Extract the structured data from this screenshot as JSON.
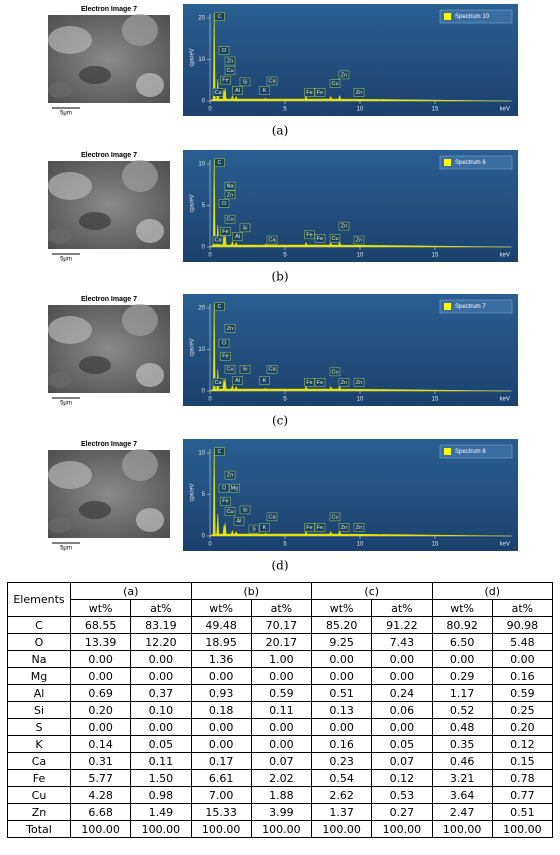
{
  "figure": {
    "panels": [
      {
        "image_title": "Electron Image 7",
        "scale_bar": "5μm",
        "legend": "Spectrum 10",
        "y_label": "cps/eV",
        "x_label": "keV",
        "yticks": [
          0,
          10,
          20
        ],
        "xticks": [
          0,
          5,
          10,
          15
        ],
        "peak_labels": [
          "C",
          "O",
          "Zn",
          "Cu",
          "Fe",
          "Ca",
          "Al",
          "Si",
          "K",
          "Ca",
          "Fe",
          "Fe",
          "Cu",
          "Zn",
          "Zn"
        ],
        "caption": "(a)"
      },
      {
        "image_title": "Electron Image 7",
        "scale_bar": "5μm",
        "legend": "Spectrum 6",
        "y_label": "cps/eV",
        "x_label": "keV",
        "yticks": [
          0,
          5,
          10
        ],
        "xticks": [
          0,
          5,
          10,
          15
        ],
        "peak_labels": [
          "C",
          "Na",
          "Zn",
          "O",
          "Cu",
          "Si",
          "Fe",
          "Al",
          "Ca",
          "Ca",
          "Fe",
          "Fe",
          "Cu",
          "Zn",
          "Zn"
        ],
        "caption": "(b)"
      },
      {
        "image_title": "Electron Image 7",
        "scale_bar": "5μm",
        "legend": "Spectrum 7",
        "y_label": "cps/eV",
        "x_label": "keV",
        "yticks": [
          0,
          10,
          20
        ],
        "xticks": [
          0,
          5,
          10,
          15
        ],
        "peak_labels": [
          "C",
          "Zn",
          "O",
          "Fe",
          "Cu",
          "Si",
          "Ca",
          "Al",
          "K",
          "Ca",
          "Fe",
          "Fe",
          "Cu",
          "Zn",
          "Zn"
        ],
        "caption": "(c)"
      },
      {
        "image_title": "Electron Image 7",
        "scale_bar": "5μm",
        "legend": "Spectrum 8",
        "y_label": "cps/eV",
        "x_label": "keV",
        "yticks": [
          0,
          5,
          10
        ],
        "xticks": [
          0,
          5,
          10,
          15
        ],
        "peak_labels": [
          "C",
          "Zn",
          "O",
          "Mg",
          "Fe",
          "Si",
          "Cu",
          "Al",
          "S",
          "K",
          "Ca",
          "Fe",
          "Fe",
          "Cu",
          "Zn",
          "Zn"
        ],
        "caption": "(d)"
      }
    ]
  },
  "table": {
    "header": {
      "elements": "Elements",
      "groups": [
        "(a)",
        "(b)",
        "(c)",
        "(d)"
      ],
      "units": [
        "wt%",
        "at%",
        "wt%",
        "at%",
        "wt%",
        "at%",
        "wt%",
        "at%"
      ]
    },
    "rows": [
      [
        "C",
        "68.55",
        "83.19",
        "49.48",
        "70.17",
        "85.20",
        "91.22",
        "80.92",
        "90.98"
      ],
      [
        "O",
        "13.39",
        "12.20",
        "18.95",
        "20.17",
        "9.25",
        "7.43",
        "6.50",
        "5.48"
      ],
      [
        "Na",
        "0.00",
        "0.00",
        "1.36",
        "1.00",
        "0.00",
        "0.00",
        "0.00",
        "0.00"
      ],
      [
        "Mg",
        "0.00",
        "0.00",
        "0.00",
        "0.00",
        "0.00",
        "0.00",
        "0.29",
        "0.16"
      ],
      [
        "Al",
        "0.69",
        "0.37",
        "0.93",
        "0.59",
        "0.51",
        "0.24",
        "1.17",
        "0.59"
      ],
      [
        "Si",
        "0.20",
        "0.10",
        "0.18",
        "0.11",
        "0.13",
        "0.06",
        "0.52",
        "0.25"
      ],
      [
        "S",
        "0.00",
        "0.00",
        "0.00",
        "0.00",
        "0.00",
        "0.00",
        "0.48",
        "0.20"
      ],
      [
        "K",
        "0.14",
        "0.05",
        "0.00",
        "0.00",
        "0.16",
        "0.05",
        "0.35",
        "0.12"
      ],
      [
        "Ca",
        "0.31",
        "0.11",
        "0.17",
        "0.07",
        "0.23",
        "0.07",
        "0.46",
        "0.15"
      ],
      [
        "Fe",
        "5.77",
        "1.50",
        "6.61",
        "2.02",
        "0.54",
        "0.12",
        "3.21",
        "0.78"
      ],
      [
        "Cu",
        "4.28",
        "0.98",
        "7.00",
        "1.88",
        "2.62",
        "0.53",
        "3.64",
        "0.77"
      ],
      [
        "Zn",
        "6.68",
        "1.49",
        "15.33",
        "3.99",
        "1.37",
        "0.27",
        "2.47",
        "0.51"
      ],
      [
        "Total",
        "100.00",
        "100.00",
        "100.00",
        "100.00",
        "100.00",
        "100.00",
        "100.00",
        "100.00"
      ]
    ]
  }
}
